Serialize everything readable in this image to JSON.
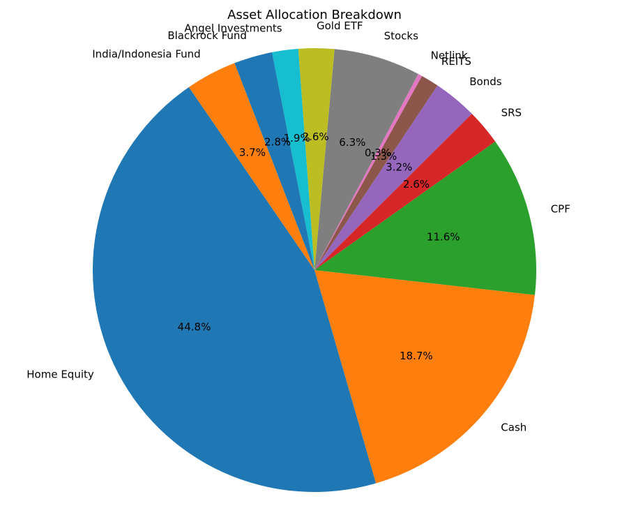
{
  "chart_data": {
    "type": "pie",
    "title": "Asset Allocation Breakdown",
    "start_angle_deg": 124.5,
    "direction": "counterclockwise",
    "legend": "none",
    "slices": [
      {
        "label": "Home Equity",
        "value": 44.8,
        "pct_label": "44.8%",
        "color": "#1f77b4"
      },
      {
        "label": "Cash",
        "value": 18.7,
        "pct_label": "18.7%",
        "color": "#ff7f0e"
      },
      {
        "label": "CPF",
        "value": 11.6,
        "pct_label": "11.6%",
        "color": "#2ca02c"
      },
      {
        "label": "SRS",
        "value": 2.6,
        "pct_label": "2.6%",
        "color": "#d62728"
      },
      {
        "label": "Bonds",
        "value": 3.2,
        "pct_label": "3.2%",
        "color": "#9467bd"
      },
      {
        "label": "REITS",
        "value": 1.3,
        "pct_label": "1.3%",
        "color": "#8c564b"
      },
      {
        "label": "Netlink",
        "value": 0.3,
        "pct_label": "0.3%",
        "color": "#e377c2"
      },
      {
        "label": "Stocks",
        "value": 6.3,
        "pct_label": "6.3%",
        "color": "#7f7f7f"
      },
      {
        "label": "Gold ETF",
        "value": 2.6,
        "pct_label": "2.6%",
        "color": "#bcbd22"
      },
      {
        "label": "Angel Investments",
        "value": 1.9,
        "pct_label": "1.9%",
        "color": "#17becf"
      },
      {
        "label": "Blackrock Fund",
        "value": 2.8,
        "pct_label": "2.8%",
        "color": "#1f77b4"
      },
      {
        "label": "India/Indonesia Fund",
        "value": 3.7,
        "pct_label": "3.7%",
        "color": "#ff7f0e"
      }
    ]
  }
}
